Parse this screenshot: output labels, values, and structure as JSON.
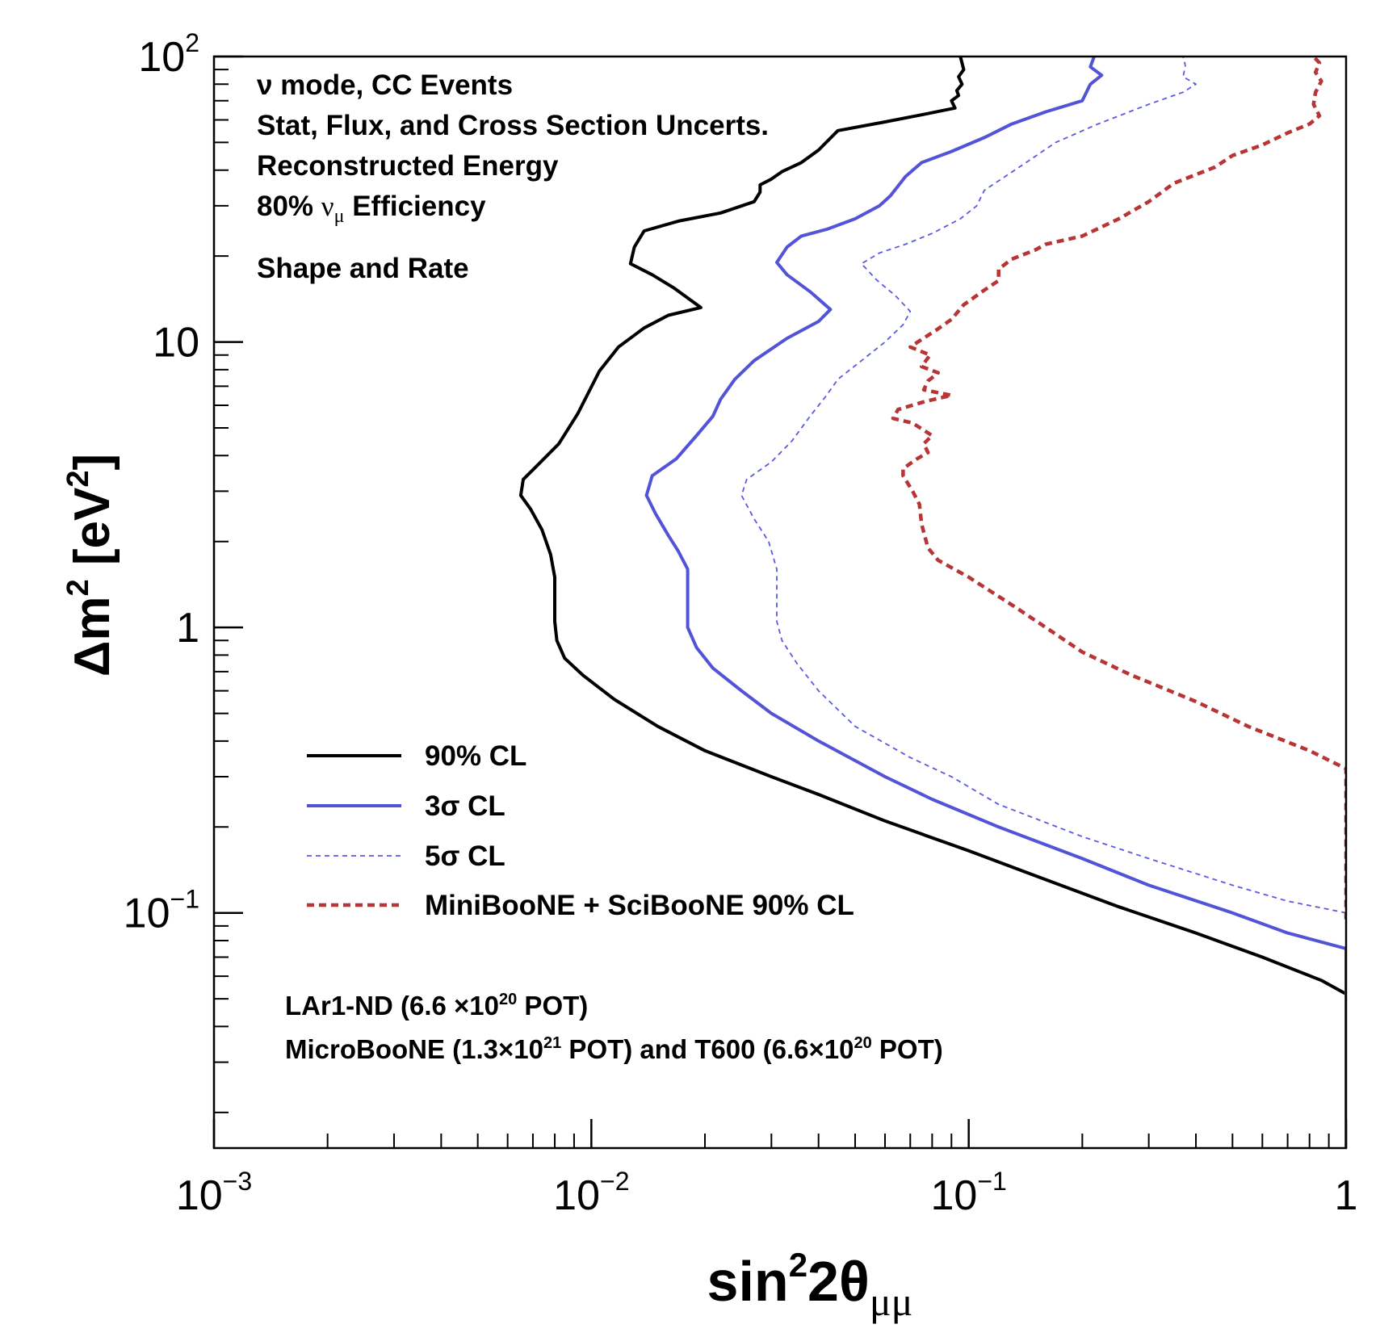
{
  "chart_data": {
    "type": "line",
    "x_scale": "log",
    "y_scale": "log",
    "xlim": [
      0.001,
      1
    ],
    "ylim": [
      0.015,
      100
    ],
    "xlabel": {
      "base": "sin",
      "sup": "2",
      "mid": "2θ",
      "sub": "μμ"
    },
    "ylabel": {
      "pre": "Δm",
      "sup": "2",
      "post": " [eV",
      "sup2": "2",
      "end": "]"
    },
    "x_ticks": [
      {
        "value": 0.001,
        "base": "10",
        "exp": "−3"
      },
      {
        "value": 0.01,
        "base": "10",
        "exp": "−2"
      },
      {
        "value": 0.1,
        "base": "10",
        "exp": "−1"
      },
      {
        "value": 1,
        "base": "1",
        "exp": ""
      }
    ],
    "y_ticks": [
      {
        "value": 0.1,
        "base": "10",
        "exp": "−1"
      },
      {
        "value": 1,
        "base": "1",
        "exp": ""
      },
      {
        "value": 10,
        "base": "10",
        "exp": ""
      },
      {
        "value": 100,
        "base": "10",
        "exp": "2"
      }
    ],
    "annotations": {
      "top_lines": [
        "ν mode, CC Events",
        "Stat, Flux, and Cross Section Uncerts.",
        "Reconstructed Energy"
      ],
      "efficiency": {
        "pre": "80% ",
        "nu": "ν",
        "sub": "μ",
        "post": " Efficiency"
      },
      "shape_rate": "Shape and Rate",
      "exposure1": {
        "pre": "LAr1-ND (6.6 ×10",
        "sup": "20",
        "post": " POT)"
      },
      "exposure2": {
        "p1": "MicroBooNE (1.3×10",
        "s1": "21",
        "p2": " POT) and T600 (6.6×10",
        "s2": "20",
        "p3": " POT)"
      }
    },
    "legend_position": "lower-left",
    "series": [
      {
        "name": "90% CL",
        "color": "#000000",
        "dash": "none",
        "points": [
          [
            1.0,
            0.015
          ],
          [
            1.0,
            0.052
          ],
          [
            0.86,
            0.058
          ],
          [
            0.6,
            0.07
          ],
          [
            0.4,
            0.085
          ],
          [
            0.25,
            0.105
          ],
          [
            0.15,
            0.135
          ],
          [
            0.1,
            0.165
          ],
          [
            0.06,
            0.21
          ],
          [
            0.04,
            0.26
          ],
          [
            0.03,
            0.3
          ],
          [
            0.02,
            0.37
          ],
          [
            0.015,
            0.45
          ],
          [
            0.0115,
            0.56
          ],
          [
            0.0095,
            0.68
          ],
          [
            0.0085,
            0.78
          ],
          [
            0.0081,
            0.9
          ],
          [
            0.008,
            1.05
          ],
          [
            0.008,
            1.5
          ],
          [
            0.0078,
            1.8
          ],
          [
            0.0074,
            2.2
          ],
          [
            0.0069,
            2.6
          ],
          [
            0.0065,
            2.9
          ],
          [
            0.0066,
            3.3
          ],
          [
            0.0072,
            3.7
          ],
          [
            0.0082,
            4.4
          ],
          [
            0.0092,
            5.6
          ],
          [
            0.0098,
            6.6
          ],
          [
            0.0105,
            7.9
          ],
          [
            0.0118,
            9.6
          ],
          [
            0.0138,
            11.2
          ],
          [
            0.016,
            12.4
          ],
          [
            0.0195,
            13.2
          ],
          [
            0.0165,
            15.5
          ],
          [
            0.0145,
            17.2
          ],
          [
            0.0127,
            18.8
          ],
          [
            0.013,
            21.5
          ],
          [
            0.0138,
            24.5
          ],
          [
            0.017,
            26.5
          ],
          [
            0.022,
            28.3
          ],
          [
            0.027,
            31.0
          ],
          [
            0.028,
            33.5
          ],
          [
            0.028,
            35.5
          ],
          [
            0.03,
            37.2
          ],
          [
            0.032,
            39.5
          ],
          [
            0.036,
            42.5
          ],
          [
            0.04,
            47.0
          ],
          [
            0.045,
            55.0
          ],
          [
            0.06,
            59.0
          ],
          [
            0.075,
            62.5
          ],
          [
            0.092,
            66.0
          ],
          [
            0.09,
            70.0
          ],
          [
            0.094,
            73.0
          ],
          [
            0.093,
            76.0
          ],
          [
            0.096,
            80.0
          ],
          [
            0.094,
            85.0
          ],
          [
            0.097,
            90.0
          ],
          [
            0.095,
            100.0
          ]
        ]
      },
      {
        "name": "3σ CL",
        "color": "#5353d8",
        "dash": "none",
        "points": [
          [
            1.0,
            0.015
          ],
          [
            1.0,
            0.075
          ],
          [
            0.7,
            0.085
          ],
          [
            0.5,
            0.1
          ],
          [
            0.3,
            0.125
          ],
          [
            0.2,
            0.155
          ],
          [
            0.12,
            0.2
          ],
          [
            0.08,
            0.25
          ],
          [
            0.06,
            0.3
          ],
          [
            0.04,
            0.4
          ],
          [
            0.03,
            0.5
          ],
          [
            0.025,
            0.6
          ],
          [
            0.021,
            0.72
          ],
          [
            0.019,
            0.85
          ],
          [
            0.018,
            1.0
          ],
          [
            0.018,
            1.6
          ],
          [
            0.017,
            1.85
          ],
          [
            0.016,
            2.1
          ],
          [
            0.0148,
            2.5
          ],
          [
            0.014,
            2.9
          ],
          [
            0.0145,
            3.4
          ],
          [
            0.0168,
            3.9
          ],
          [
            0.019,
            4.7
          ],
          [
            0.021,
            5.5
          ],
          [
            0.022,
            6.3
          ],
          [
            0.024,
            7.4
          ],
          [
            0.027,
            8.6
          ],
          [
            0.033,
            10.3
          ],
          [
            0.04,
            11.8
          ],
          [
            0.043,
            13.0
          ],
          [
            0.038,
            15.0
          ],
          [
            0.033,
            17.2
          ],
          [
            0.031,
            19.0
          ],
          [
            0.033,
            21.5
          ],
          [
            0.036,
            23.5
          ],
          [
            0.042,
            24.8
          ],
          [
            0.05,
            27.0
          ],
          [
            0.058,
            30.0
          ],
          [
            0.062,
            32.5
          ],
          [
            0.068,
            38.0
          ],
          [
            0.075,
            42.5
          ],
          [
            0.09,
            46.5
          ],
          [
            0.11,
            52.0
          ],
          [
            0.13,
            58.0
          ],
          [
            0.16,
            64.0
          ],
          [
            0.2,
            70.0
          ],
          [
            0.21,
            80.0
          ],
          [
            0.225,
            86.0
          ],
          [
            0.21,
            92.0
          ],
          [
            0.215,
            100.0
          ]
        ]
      },
      {
        "name": "5σ CL",
        "color": "#5a5ae0",
        "dash": "6,5",
        "points": [
          [
            1.0,
            0.1
          ],
          [
            0.7,
            0.11
          ],
          [
            0.5,
            0.125
          ],
          [
            0.3,
            0.155
          ],
          [
            0.2,
            0.185
          ],
          [
            0.12,
            0.24
          ],
          [
            0.09,
            0.3
          ],
          [
            0.07,
            0.35
          ],
          [
            0.05,
            0.45
          ],
          [
            0.04,
            0.6
          ],
          [
            0.035,
            0.75
          ],
          [
            0.032,
            0.9
          ],
          [
            0.031,
            1.05
          ],
          [
            0.031,
            1.6
          ],
          [
            0.0295,
            2.0
          ],
          [
            0.027,
            2.4
          ],
          [
            0.025,
            2.9
          ],
          [
            0.0258,
            3.3
          ],
          [
            0.03,
            3.8
          ],
          [
            0.034,
            4.5
          ],
          [
            0.038,
            5.5
          ],
          [
            0.042,
            6.5
          ],
          [
            0.045,
            7.4
          ],
          [
            0.052,
            8.6
          ],
          [
            0.06,
            10.0
          ],
          [
            0.067,
            11.5
          ],
          [
            0.07,
            12.8
          ],
          [
            0.064,
            14.5
          ],
          [
            0.057,
            16.5
          ],
          [
            0.052,
            18.8
          ],
          [
            0.058,
            20.5
          ],
          [
            0.068,
            22.0
          ],
          [
            0.08,
            24.0
          ],
          [
            0.095,
            27.0
          ],
          [
            0.105,
            30.0
          ],
          [
            0.11,
            34.0
          ],
          [
            0.14,
            42.0
          ],
          [
            0.17,
            50.0
          ],
          [
            0.22,
            58.0
          ],
          [
            0.3,
            68.0
          ],
          [
            0.37,
            75.0
          ],
          [
            0.4,
            80.0
          ],
          [
            0.37,
            85.0
          ],
          [
            0.375,
            93.0
          ],
          [
            0.37,
            100.0
          ]
        ]
      },
      {
        "name": "MiniBooNE + SciBooNE 90% CL",
        "color": "#b73535",
        "dash": "9,6",
        "points": [
          [
            1.0,
            0.095
          ],
          [
            1.0,
            0.32
          ],
          [
            0.8,
            0.37
          ],
          [
            0.55,
            0.45
          ],
          [
            0.4,
            0.55
          ],
          [
            0.27,
            0.68
          ],
          [
            0.2,
            0.82
          ],
          [
            0.16,
            1.0
          ],
          [
            0.13,
            1.2
          ],
          [
            0.1,
            1.5
          ],
          [
            0.083,
            1.72
          ],
          [
            0.078,
            1.9
          ],
          [
            0.075,
            2.3
          ],
          [
            0.074,
            2.7
          ],
          [
            0.071,
            3.0
          ],
          [
            0.067,
            3.4
          ],
          [
            0.067,
            3.6
          ],
          [
            0.073,
            3.9
          ],
          [
            0.078,
            4.1
          ],
          [
            0.076,
            4.4
          ],
          [
            0.08,
            4.7
          ],
          [
            0.071,
            5.2
          ],
          [
            0.063,
            5.4
          ],
          [
            0.065,
            5.8
          ],
          [
            0.077,
            6.2
          ],
          [
            0.09,
            6.5
          ],
          [
            0.076,
            6.8
          ],
          [
            0.078,
            7.3
          ],
          [
            0.083,
            7.8
          ],
          [
            0.075,
            8.2
          ],
          [
            0.079,
            9.0
          ],
          [
            0.07,
            9.6
          ],
          [
            0.075,
            10.2
          ],
          [
            0.082,
            11.0
          ],
          [
            0.09,
            12.0
          ],
          [
            0.097,
            13.5
          ],
          [
            0.11,
            15.2
          ],
          [
            0.12,
            16.4
          ],
          [
            0.12,
            18.0
          ],
          [
            0.13,
            19.5
          ],
          [
            0.15,
            21.0
          ],
          [
            0.16,
            22.0
          ],
          [
            0.2,
            23.5
          ],
          [
            0.25,
            27.0
          ],
          [
            0.3,
            31.0
          ],
          [
            0.35,
            36.0
          ],
          [
            0.45,
            41.0
          ],
          [
            0.5,
            45.0
          ],
          [
            0.6,
            49.0
          ],
          [
            0.7,
            54.0
          ],
          [
            0.8,
            58.0
          ],
          [
            0.85,
            62.0
          ],
          [
            0.82,
            68.0
          ],
          [
            0.83,
            75.0
          ],
          [
            0.86,
            82.0
          ],
          [
            0.83,
            88.0
          ],
          [
            0.85,
            95.0
          ],
          [
            0.82,
            100.0
          ]
        ]
      }
    ]
  }
}
